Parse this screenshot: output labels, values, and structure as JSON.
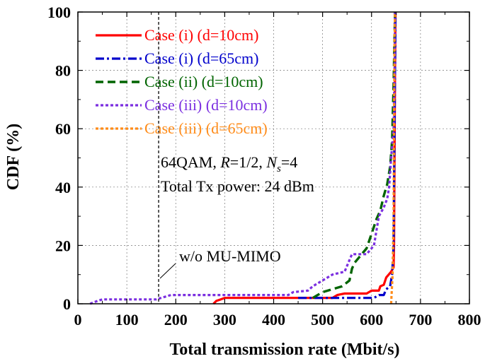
{
  "chart_data": {
    "type": "line",
    "title": "",
    "xlabel": "Total transmission rate (Mbit/s)",
    "ylabel": "CDF (%)",
    "xlim": [
      0,
      800
    ],
    "ylim": [
      0,
      100
    ],
    "xticks": [
      "0",
      "100",
      "200",
      "300",
      "400",
      "500",
      "600",
      "700",
      "800"
    ],
    "yticks": [
      "0",
      "20",
      "40",
      "60",
      "80",
      "100"
    ],
    "legend_position": "top-left",
    "annotations": {
      "modulation_prefix": "64QAM, ",
      "rate_symbol": "R",
      "rate_value": "=1/2, ",
      "streams_symbol": "N",
      "streams_subscript": "s",
      "streams_value": "=4",
      "power": "Total Tx power: 24 dBm",
      "reference_label": "w/o MU-MIMO",
      "reference_x": 165
    },
    "series": [
      {
        "name": "Case (i) (d=10cm)",
        "color": "#ff0000",
        "style": "solid",
        "points": [
          [
            277,
            0
          ],
          [
            283,
            1
          ],
          [
            292,
            1.5
          ],
          [
            300,
            2
          ],
          [
            450,
            2
          ],
          [
            520,
            2
          ],
          [
            530,
            3
          ],
          [
            545,
            3.5
          ],
          [
            590,
            3.5
          ],
          [
            600,
            4.5
          ],
          [
            615,
            4.5
          ],
          [
            618,
            6
          ],
          [
            625,
            6.5
          ],
          [
            630,
            9
          ],
          [
            640,
            11
          ],
          [
            645,
            12.5
          ],
          [
            646,
            20
          ],
          [
            647,
            50
          ],
          [
            648,
            80
          ],
          [
            649,
            100
          ]
        ]
      },
      {
        "name": "Case (i) (d=65cm)",
        "color": "#0000cc",
        "style": "dashdot",
        "points": [
          [
            450,
            2
          ],
          [
            520,
            2
          ],
          [
            605,
            2
          ],
          [
            615,
            3
          ],
          [
            625,
            3
          ],
          [
            630,
            5
          ],
          [
            638,
            6
          ],
          [
            642,
            10
          ],
          [
            645,
            20
          ],
          [
            646,
            40
          ],
          [
            647,
            60
          ],
          [
            648,
            80
          ],
          [
            649,
            100
          ]
        ]
      },
      {
        "name": "Case (ii) (d=10cm)",
        "color": "#006400",
        "style": "dash",
        "points": [
          [
            480,
            2
          ],
          [
            490,
            3
          ],
          [
            500,
            4
          ],
          [
            520,
            5
          ],
          [
            540,
            6
          ],
          [
            555,
            8
          ],
          [
            560,
            12
          ],
          [
            565,
            14
          ],
          [
            575,
            16
          ],
          [
            580,
            17
          ],
          [
            590,
            19
          ],
          [
            600,
            24
          ],
          [
            610,
            29
          ],
          [
            618,
            32
          ],
          [
            625,
            37
          ],
          [
            632,
            41
          ],
          [
            638,
            47
          ],
          [
            642,
            56
          ],
          [
            645,
            75
          ],
          [
            648,
            100
          ]
        ]
      },
      {
        "name": "Case (iii) (d=10cm)",
        "color": "#7b2fe0",
        "style": "dot",
        "points": [
          [
            25,
            0
          ],
          [
            40,
            1
          ],
          [
            50,
            1.5
          ],
          [
            160,
            1.5
          ],
          [
            170,
            2
          ],
          [
            180,
            2.5
          ],
          [
            190,
            3
          ],
          [
            430,
            3
          ],
          [
            440,
            4
          ],
          [
            470,
            4.5
          ],
          [
            480,
            6
          ],
          [
            500,
            8
          ],
          [
            520,
            10
          ],
          [
            545,
            11
          ],
          [
            555,
            15
          ],
          [
            560,
            17
          ],
          [
            590,
            17
          ],
          [
            605,
            20
          ],
          [
            615,
            30
          ],
          [
            625,
            33
          ],
          [
            632,
            36
          ],
          [
            636,
            40
          ],
          [
            640,
            50
          ],
          [
            645,
            60
          ],
          [
            647,
            80
          ],
          [
            648,
            100
          ]
        ]
      },
      {
        "name": "Case (iii) (d=65cm)",
        "color": "#ff8c1a",
        "style": "dot",
        "points": [
          [
            640,
            0
          ],
          [
            643,
            10
          ],
          [
            645,
            30
          ],
          [
            646,
            60
          ],
          [
            647,
            90
          ],
          [
            648,
            100
          ]
        ]
      }
    ]
  }
}
